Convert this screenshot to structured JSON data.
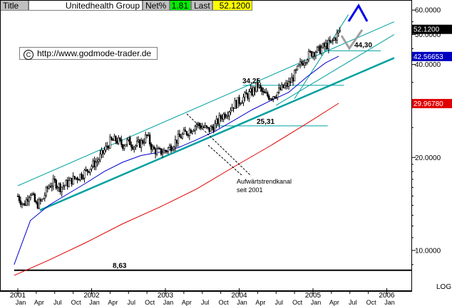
{
  "header": {
    "title_label": "Title",
    "instrument": "Unitedhealth Group",
    "netpct_label": "Net%",
    "netpct_value": "1.81",
    "last_label": "Last",
    "last_value": "52.1200"
  },
  "watermark": {
    "url": "http://www.godmode-trader.de"
  },
  "colors": {
    "candle": "#000000",
    "channel_lines": "#00a0a0",
    "ma_blue": "#0000d0",
    "ma_red": "#e00000",
    "header_green": "#00ee00",
    "header_yellow": "#ffff00",
    "last_tag": "#000000",
    "blue_tag": "#0000c0",
    "red_tag": "#e00000",
    "arrow_blue": "#0000ee",
    "arrow_gray": "#a0a0a0"
  },
  "chart_data": {
    "type": "candlestick",
    "title": "Unitedhealth Group",
    "yscale": "log",
    "ylim": [
      8.0,
      62.0
    ],
    "y_axis_label": "LOG",
    "y_ticks": [
      "60.0000",
      "50.0000",
      "40.0000",
      "20.0000",
      "10.0000"
    ],
    "x_years": [
      "2001",
      "2002",
      "2003",
      "2004",
      "2005",
      "2006"
    ],
    "x_months": [
      "Jan",
      "Apr",
      "Jul",
      "Oct",
      "Jan",
      "Apr",
      "Jul",
      "Oct",
      "Jan",
      "Apr",
      "Jul",
      "Oct",
      "Jan",
      "Apr",
      "Jul",
      "Oct",
      "Jan",
      "Apr",
      "Jul",
      "Oct",
      "Jan"
    ],
    "x_range": [
      2000.95,
      2006.1
    ],
    "price_tags": [
      {
        "value": 52.12,
        "label": "52.1200",
        "kind": "last"
      },
      {
        "value": 42.56653,
        "label": "42.56653",
        "kind": "blue"
      },
      {
        "value": 29.9678,
        "label": "29.96780",
        "kind": "red"
      }
    ],
    "annotations": [
      {
        "text": "34,25",
        "value": 34.25
      },
      {
        "text": "25,31",
        "value": 25.31
      },
      {
        "text": "44,30",
        "value": 44.3
      },
      {
        "text": "8,63",
        "value": 8.63
      }
    ],
    "channel_note": [
      "Aufwärtstrendkanal",
      "seit 2001"
    ],
    "price_series": [
      {
        "t": 2001.0,
        "v": 15.0
      },
      {
        "t": 2001.08,
        "v": 14.0
      },
      {
        "t": 2001.17,
        "v": 15.5
      },
      {
        "t": 2001.25,
        "v": 14.0
      },
      {
        "t": 2001.33,
        "v": 14.5
      },
      {
        "t": 2001.42,
        "v": 16.2
      },
      {
        "t": 2001.5,
        "v": 16.6
      },
      {
        "t": 2001.58,
        "v": 16.0
      },
      {
        "t": 2001.67,
        "v": 16.5
      },
      {
        "t": 2001.75,
        "v": 17.0
      },
      {
        "t": 2001.83,
        "v": 17.4
      },
      {
        "t": 2001.92,
        "v": 18.0
      },
      {
        "t": 2002.0,
        "v": 18.8
      },
      {
        "t": 2002.08,
        "v": 19.5
      },
      {
        "t": 2002.17,
        "v": 21.0
      },
      {
        "t": 2002.25,
        "v": 22.5
      },
      {
        "t": 2002.33,
        "v": 22.8
      },
      {
        "t": 2002.42,
        "v": 22.0
      },
      {
        "t": 2002.5,
        "v": 22.6
      },
      {
        "t": 2002.58,
        "v": 21.8
      },
      {
        "t": 2002.67,
        "v": 22.3
      },
      {
        "t": 2002.75,
        "v": 23.5
      },
      {
        "t": 2002.83,
        "v": 21.2
      },
      {
        "t": 2002.92,
        "v": 20.8
      },
      {
        "t": 2003.0,
        "v": 21.0
      },
      {
        "t": 2003.08,
        "v": 21.8
      },
      {
        "t": 2003.17,
        "v": 23.0
      },
      {
        "t": 2003.25,
        "v": 23.8
      },
      {
        "t": 2003.33,
        "v": 24.5
      },
      {
        "t": 2003.42,
        "v": 25.6
      },
      {
        "t": 2003.5,
        "v": 25.2
      },
      {
        "t": 2003.58,
        "v": 24.5
      },
      {
        "t": 2003.67,
        "v": 25.3
      },
      {
        "t": 2003.75,
        "v": 27.0
      },
      {
        "t": 2003.83,
        "v": 28.0
      },
      {
        "t": 2003.92,
        "v": 29.5
      },
      {
        "t": 2004.0,
        "v": 30.5
      },
      {
        "t": 2004.08,
        "v": 31.5
      },
      {
        "t": 2004.17,
        "v": 32.5
      },
      {
        "t": 2004.25,
        "v": 34.2
      },
      {
        "t": 2004.33,
        "v": 32.0
      },
      {
        "t": 2004.42,
        "v": 31.5
      },
      {
        "t": 2004.5,
        "v": 32.2
      },
      {
        "t": 2004.58,
        "v": 33.5
      },
      {
        "t": 2004.67,
        "v": 34.5
      },
      {
        "t": 2004.75,
        "v": 37.0
      },
      {
        "t": 2004.83,
        "v": 40.0
      },
      {
        "t": 2004.92,
        "v": 42.5
      },
      {
        "t": 2005.0,
        "v": 44.0
      },
      {
        "t": 2005.08,
        "v": 44.5
      },
      {
        "t": 2005.17,
        "v": 46.0
      },
      {
        "t": 2005.25,
        "v": 47.0
      },
      {
        "t": 2005.33,
        "v": 50.0
      },
      {
        "t": 2005.38,
        "v": 52.12
      }
    ],
    "moving_average_blue": [
      {
        "t": 2000.95,
        "v": 9.0
      },
      {
        "t": 2001.17,
        "v": 12.5
      },
      {
        "t": 2001.42,
        "v": 14.0
      },
      {
        "t": 2001.67,
        "v": 15.2
      },
      {
        "t": 2001.92,
        "v": 16.5
      },
      {
        "t": 2002.17,
        "v": 18.0
      },
      {
        "t": 2002.42,
        "v": 19.3
      },
      {
        "t": 2002.67,
        "v": 20.3
      },
      {
        "t": 2002.92,
        "v": 20.8
      },
      {
        "t": 2003.17,
        "v": 21.5
      },
      {
        "t": 2003.42,
        "v": 22.8
      },
      {
        "t": 2003.67,
        "v": 24.3
      },
      {
        "t": 2003.92,
        "v": 26.3
      },
      {
        "t": 2004.17,
        "v": 28.5
      },
      {
        "t": 2004.42,
        "v": 30.5
      },
      {
        "t": 2004.67,
        "v": 32.5
      },
      {
        "t": 2004.92,
        "v": 36.5
      },
      {
        "t": 2005.17,
        "v": 40.5
      },
      {
        "t": 2005.35,
        "v": 42.56653
      }
    ],
    "moving_average_red": [
      {
        "t": 2000.95,
        "v": 8.3
      },
      {
        "t": 2001.42,
        "v": 9.3
      },
      {
        "t": 2001.92,
        "v": 10.6
      },
      {
        "t": 2002.42,
        "v": 12.2
      },
      {
        "t": 2002.92,
        "v": 13.8
      },
      {
        "t": 2003.42,
        "v": 15.8
      },
      {
        "t": 2003.92,
        "v": 18.6
      },
      {
        "t": 2004.42,
        "v": 21.8
      },
      {
        "t": 2004.92,
        "v": 25.8
      },
      {
        "t": 2005.35,
        "v": 29.9678
      }
    ],
    "trendlines": [
      {
        "name": "channel-lower",
        "t": [
          2001.3,
          2006.1
        ],
        "v": [
          13.5,
          42.0
        ]
      },
      {
        "name": "channel-upper",
        "t": [
          2001.0,
          2006.1
        ],
        "v": [
          16.2,
          55.0
        ]
      },
      {
        "name": "steep-support",
        "t": [
          2004.75,
          2005.48
        ],
        "v": [
          31.0,
          58.0
        ]
      },
      {
        "name": "fan-line",
        "t": [
          2004.5,
          2006.1
        ],
        "v": [
          29.5,
          50.0
        ]
      }
    ],
    "horizontal_levels": [
      {
        "value": 34.25,
        "t": [
          2004.05,
          2005.42
        ]
      },
      {
        "value": 25.31,
        "t": [
          2003.65,
          2005.2
        ]
      },
      {
        "value": 44.3,
        "t": [
          2005.15,
          2005.92
        ]
      },
      {
        "value": 8.63,
        "t": [
          2000.95,
          2006.1
        ]
      }
    ]
  }
}
